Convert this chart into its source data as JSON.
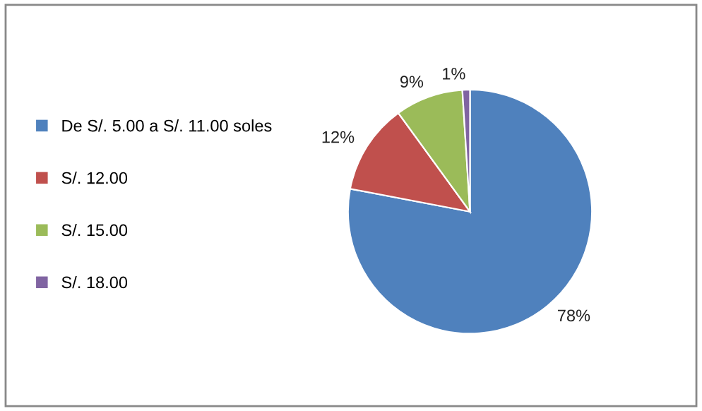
{
  "chart_data": {
    "type": "pie",
    "categories": [
      "De S/. 5.00 a S/. 11.00 soles",
      "S/. 12.00",
      "S/. 15.00",
      "S/. 18.00"
    ],
    "values": [
      78,
      12,
      9,
      1
    ],
    "value_labels": [
      "78%",
      "12%",
      "9%",
      "1%"
    ],
    "colors": [
      "#4f81bd",
      "#c0504d",
      "#9bbb59",
      "#8064a2"
    ],
    "legend": "left"
  }
}
